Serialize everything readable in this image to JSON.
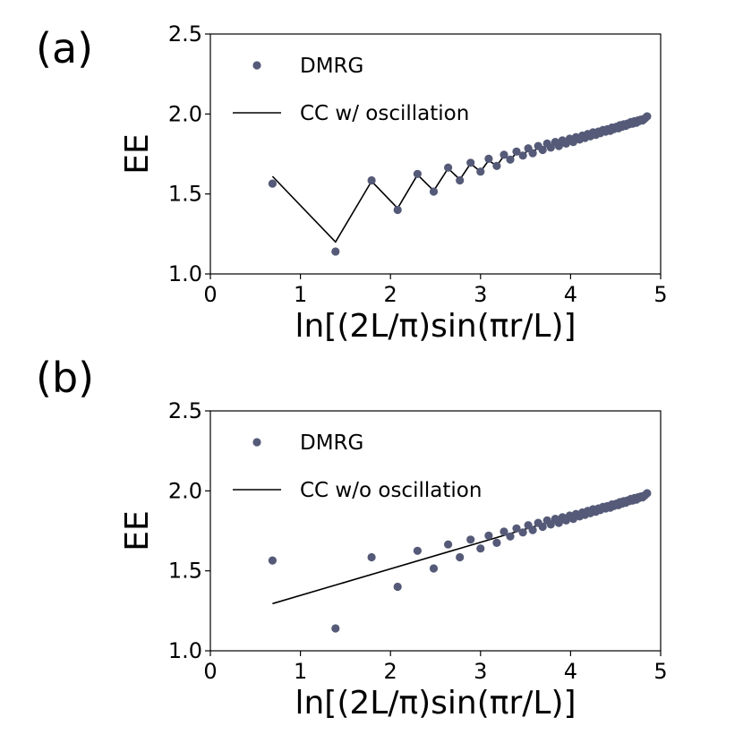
{
  "chart_data": [
    {
      "type": "scatter",
      "panel_label": "(a)",
      "xlabel": "ln[(2L/π)sin(πr/L)]",
      "ylabel": "EE",
      "xlim": [
        0,
        5
      ],
      "ylim": [
        1.0,
        2.5
      ],
      "xticks": [
        "0",
        "1",
        "2",
        "3",
        "4",
        "5"
      ],
      "yticks": [
        "1.0",
        "1.5",
        "2.0",
        "2.5"
      ],
      "grid": false,
      "legend_position": "top-left",
      "series": [
        {
          "name": "DMRG",
          "kind": "points",
          "color": "#555a78",
          "x": [
            0.69,
            1.39,
            1.79,
            2.08,
            2.3,
            2.48,
            2.64,
            2.77,
            2.89,
            3.0,
            3.09,
            3.18,
            3.26,
            3.33,
            3.4,
            3.47,
            3.53,
            3.58,
            3.64,
            3.69,
            3.74,
            3.78,
            3.83,
            3.87,
            3.91,
            3.95,
            3.99,
            4.03,
            4.06,
            4.1,
            4.13,
            4.16,
            4.19,
            4.22,
            4.25,
            4.28,
            4.31,
            4.33,
            4.36,
            4.39,
            4.41,
            4.44,
            4.46,
            4.48,
            4.51,
            4.53,
            4.55,
            4.57,
            4.59,
            4.61,
            4.63,
            4.65,
            4.67,
            4.69,
            4.71,
            4.73,
            4.75,
            4.76,
            4.78,
            4.8,
            4.82,
            4.83,
            4.85
          ],
          "y": [
            1.565,
            1.14,
            1.585,
            1.4,
            1.625,
            1.515,
            1.665,
            1.585,
            1.695,
            1.64,
            1.72,
            1.675,
            1.745,
            1.715,
            1.765,
            1.74,
            1.785,
            1.755,
            1.8,
            1.775,
            1.815,
            1.79,
            1.825,
            1.8,
            1.835,
            1.815,
            1.845,
            1.825,
            1.855,
            1.84,
            1.865,
            1.85,
            1.875,
            1.86,
            1.885,
            1.87,
            1.89,
            1.88,
            1.9,
            1.89,
            1.905,
            1.895,
            1.915,
            1.905,
            1.92,
            1.91,
            1.93,
            1.92,
            1.935,
            1.925,
            1.94,
            1.935,
            1.95,
            1.94,
            1.955,
            1.945,
            1.96,
            1.955,
            1.965,
            1.96,
            1.97,
            1.975,
            1.985
          ]
        },
        {
          "name": "CC w/ oscillation",
          "kind": "line",
          "color": "#000000",
          "x": [
            0.69,
            1.39,
            1.79,
            2.08,
            2.3,
            2.48,
            2.64,
            2.77,
            2.89,
            3.0,
            3.09,
            3.18,
            3.26,
            3.33,
            3.4,
            3.47,
            3.53,
            3.58,
            3.64,
            3.69,
            3.74,
            3.78,
            3.83,
            3.87,
            3.91,
            3.95,
            3.99,
            4.03,
            4.06,
            4.1,
            4.13,
            4.16,
            4.19,
            4.22,
            4.25,
            4.28,
            4.31,
            4.33,
            4.36,
            4.39,
            4.41,
            4.44,
            4.46,
            4.48,
            4.51,
            4.53,
            4.55,
            4.57,
            4.59,
            4.61,
            4.63,
            4.65,
            4.67,
            4.69,
            4.71,
            4.73,
            4.75,
            4.76,
            4.78,
            4.8,
            4.82,
            4.83,
            4.85
          ],
          "y": [
            1.61,
            1.2,
            1.58,
            1.41,
            1.62,
            1.52,
            1.66,
            1.59,
            1.69,
            1.64,
            1.71,
            1.675,
            1.74,
            1.71,
            1.76,
            1.735,
            1.78,
            1.755,
            1.795,
            1.77,
            1.81,
            1.79,
            1.82,
            1.8,
            1.83,
            1.815,
            1.84,
            1.825,
            1.85,
            1.84,
            1.86,
            1.85,
            1.87,
            1.86,
            1.88,
            1.87,
            1.89,
            1.88,
            1.9,
            1.89,
            1.905,
            1.895,
            1.91,
            1.905,
            1.92,
            1.91,
            1.925,
            1.92,
            1.935,
            1.925,
            1.94,
            1.935,
            1.95,
            1.94,
            1.955,
            1.945,
            1.96,
            1.955,
            1.965,
            1.96,
            1.97,
            1.975,
            1.985
          ]
        }
      ]
    },
    {
      "type": "scatter",
      "panel_label": "(b)",
      "xlabel": "ln[(2L/π)sin(πr/L)]",
      "ylabel": "EE",
      "xlim": [
        0,
        5
      ],
      "ylim": [
        1.0,
        2.5
      ],
      "xticks": [
        "0",
        "1",
        "2",
        "3",
        "4",
        "5"
      ],
      "yticks": [
        "1.0",
        "1.5",
        "2.0",
        "2.5"
      ],
      "grid": false,
      "legend_position": "top-left",
      "series": [
        {
          "name": "DMRG",
          "kind": "points",
          "color": "#555a78",
          "x": [
            0.69,
            1.39,
            1.79,
            2.08,
            2.3,
            2.48,
            2.64,
            2.77,
            2.89,
            3.0,
            3.09,
            3.18,
            3.26,
            3.33,
            3.4,
            3.47,
            3.53,
            3.58,
            3.64,
            3.69,
            3.74,
            3.78,
            3.83,
            3.87,
            3.91,
            3.95,
            3.99,
            4.03,
            4.06,
            4.1,
            4.13,
            4.16,
            4.19,
            4.22,
            4.25,
            4.28,
            4.31,
            4.33,
            4.36,
            4.39,
            4.41,
            4.44,
            4.46,
            4.48,
            4.51,
            4.53,
            4.55,
            4.57,
            4.59,
            4.61,
            4.63,
            4.65,
            4.67,
            4.69,
            4.71,
            4.73,
            4.75,
            4.76,
            4.78,
            4.8,
            4.82,
            4.83,
            4.85
          ],
          "y": [
            1.565,
            1.14,
            1.585,
            1.4,
            1.625,
            1.515,
            1.665,
            1.585,
            1.695,
            1.64,
            1.72,
            1.675,
            1.745,
            1.715,
            1.765,
            1.74,
            1.785,
            1.755,
            1.8,
            1.775,
            1.815,
            1.79,
            1.825,
            1.8,
            1.835,
            1.815,
            1.845,
            1.825,
            1.855,
            1.84,
            1.865,
            1.85,
            1.875,
            1.86,
            1.885,
            1.87,
            1.89,
            1.88,
            1.9,
            1.89,
            1.905,
            1.895,
            1.915,
            1.905,
            1.92,
            1.91,
            1.93,
            1.92,
            1.935,
            1.925,
            1.94,
            1.935,
            1.95,
            1.94,
            1.955,
            1.945,
            1.96,
            1.955,
            1.965,
            1.96,
            1.97,
            1.975,
            1.985
          ]
        },
        {
          "name": "CC w/o oscillation",
          "kind": "line",
          "color": "#000000",
          "x": [
            0.69,
            4.85
          ],
          "y": [
            1.295,
            1.985
          ]
        }
      ]
    }
  ]
}
